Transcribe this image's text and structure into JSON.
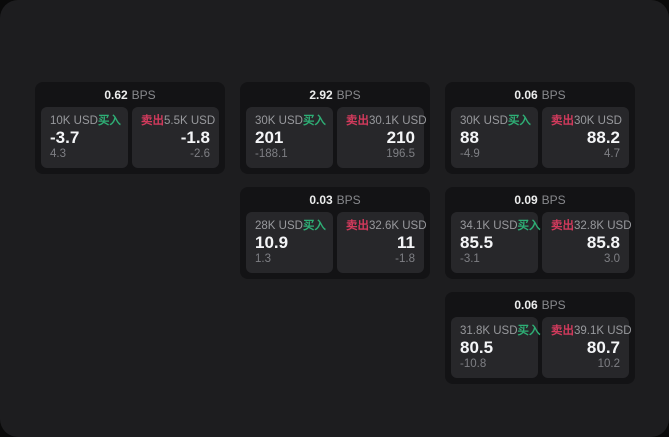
{
  "shared": {
    "bps_suffix": "BPS",
    "buy_label": "买入",
    "sell_label": "卖出"
  },
  "colors": {
    "accent_buy": "#2EAE75",
    "accent_sell": "#D13A5C"
  },
  "cards": [
    {
      "bps": "0.62",
      "buy": {
        "notional": "10K USD",
        "value": "-3.7",
        "delta": "4.3"
      },
      "sell": {
        "notional": "5.5K USD",
        "value": "-1.8",
        "delta": "-2.6"
      }
    },
    {
      "bps": "2.92",
      "buy": {
        "notional": "30K USD",
        "value": "201",
        "delta": "-188.1"
      },
      "sell": {
        "notional": "30.1K USD",
        "value": "210",
        "delta": "196.5"
      }
    },
    {
      "bps": "0.06",
      "buy": {
        "notional": "30K USD",
        "value": "88",
        "delta": "-4.9"
      },
      "sell": {
        "notional": "30K USD",
        "value": "88.2",
        "delta": "4.7"
      }
    },
    {
      "bps": "0.03",
      "buy": {
        "notional": "28K USD",
        "value": "10.9",
        "delta": "1.3"
      },
      "sell": {
        "notional": "32.6K USD",
        "value": "11",
        "delta": "-1.8"
      }
    },
    {
      "bps": "0.09",
      "buy": {
        "notional": "34.1K USD",
        "value": "85.5",
        "delta": "-3.1"
      },
      "sell": {
        "notional": "32.8K USD",
        "value": "85.8",
        "delta": "3.0"
      }
    },
    {
      "bps": "0.06",
      "buy": {
        "notional": "31.8K USD",
        "value": "80.5",
        "delta": "-10.8"
      },
      "sell": {
        "notional": "39.1K USD",
        "value": "80.7",
        "delta": "10.2"
      }
    }
  ]
}
